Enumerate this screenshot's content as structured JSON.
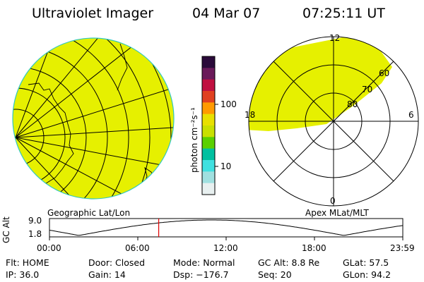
{
  "header": {
    "instrument": "Ultraviolet Imager",
    "date": "04 Mar 07",
    "time": "07:25:11 UT"
  },
  "colorbar": {
    "unit_label": "photon cm⁻²s⁻¹",
    "tick_100": "100",
    "tick_10": "10",
    "colors": [
      "#2a0a3a",
      "#6a1a5a",
      "#c01040",
      "#e04020",
      "#ff9a00",
      "#e8e000",
      "#c8e000",
      "#5ad000",
      "#00c0a0",
      "#40e0e0",
      "#a0e0e0",
      "#e8f0f0"
    ]
  },
  "geo_panel": {
    "label": "Geographic Lat/Lon",
    "fill": "#e6f000"
  },
  "polar_panel": {
    "label": "Apex MLat/MLT",
    "mlt_12": "12",
    "mlt_18": "18",
    "mlt_6": "6",
    "mlt_0": "0",
    "lat_60": "60",
    "lat_70": "70",
    "lat_80": "80"
  },
  "orbit": {
    "axis_label": "GC Alt",
    "y_max": "9.0",
    "y_min": "1.8",
    "x_ticks": [
      "00:00",
      "06:00",
      "12:00",
      "18:00",
      "23:59"
    ],
    "current_time_marker_hours": 7.42
  },
  "status": {
    "flt": "Flt: HOME",
    "door": "Door: Closed",
    "mode": "Mode: Normal",
    "gc_alt": "GC Alt: 8.8 Re",
    "glat": "GLat:  57.5",
    "ip": "IP: 36.0",
    "gain": "Gain: 14",
    "dsp": "Dsp: −176.7",
    "seq": "Seq: 20",
    "glon": "GLon:  94.2"
  }
}
